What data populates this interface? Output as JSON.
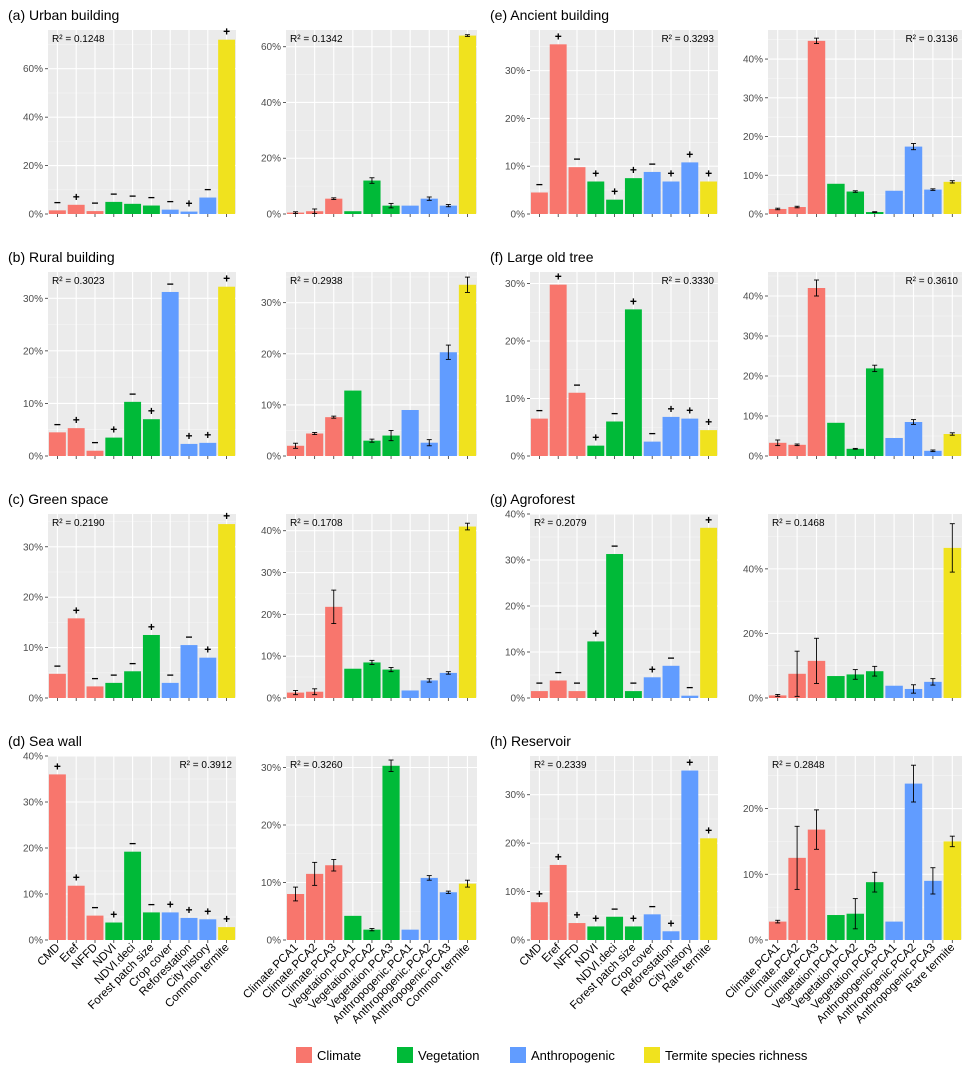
{
  "colors": {
    "Climate": "#F8766D",
    "Vegetation": "#00BA38",
    "Anthropogenic": "#619CFF",
    "Termite": "#F0E21E",
    "panel_bg": "#EBEBEB",
    "grid": "#FFFFFF",
    "text": "#333333"
  },
  "legend": {
    "entries": [
      {
        "label": "Climate",
        "color_key": "Climate"
      },
      {
        "label": "Vegetation",
        "color_key": "Vegetation"
      },
      {
        "label": "Anthropogenic",
        "color_key": "Anthropogenic"
      },
      {
        "label": "Termite species richness",
        "color_key": "Termite"
      }
    ]
  },
  "chart_data": [
    {
      "type": "bar",
      "panel": "a-left",
      "title": "(a) Urban building",
      "r2": "R² = 0.1248",
      "r2_position": "top-left",
      "ylim": [
        0,
        76
      ],
      "yticks": [
        0,
        20,
        40,
        60
      ],
      "ytick_labels": [
        "0%",
        "20%",
        "40%",
        "60%"
      ],
      "categories": [
        "CMD",
        "Eref",
        "NFFD",
        "NDVI",
        "NDVI.deci",
        "Forest patch size",
        "Crop cover",
        "Reforestation",
        "City history",
        "Common termite"
      ],
      "groups": [
        "Climate",
        "Climate",
        "Climate",
        "Vegetation",
        "Vegetation",
        "Vegetation",
        "Anthropogenic",
        "Anthropogenic",
        "Anthropogenic",
        "Termite"
      ],
      "values": [
        1.5,
        3.8,
        1.2,
        5.0,
        4.2,
        3.5,
        1.8,
        1.0,
        6.8,
        72.0
      ],
      "signs": [
        "−",
        "+",
        "−",
        "−",
        "−",
        "−",
        "−",
        "+",
        "−",
        "+"
      ],
      "errors": null
    },
    {
      "type": "bar",
      "panel": "a-right",
      "title": "",
      "r2": "R² = 0.1342",
      "r2_position": "top-left",
      "ylim": [
        0,
        66
      ],
      "yticks": [
        0,
        20,
        40,
        60
      ],
      "ytick_labels": [
        "0%",
        "20%",
        "40%",
        "60%"
      ],
      "categories": [
        "Climate.PCA1",
        "Climate.PCA2",
        "Climate.PCA3",
        "Vegetation.PCA1",
        "Vegetation.PCA2",
        "Vegetation.PCA3",
        "Anthropogenic.PCA1",
        "Anthropogenic.PCA2",
        "Anthropogenic.PCA3",
        "Common termite"
      ],
      "groups": [
        "Climate",
        "Climate",
        "Climate",
        "Vegetation",
        "Vegetation",
        "Vegetation",
        "Anthropogenic",
        "Anthropogenic",
        "Anthropogenic",
        "Termite"
      ],
      "values": [
        0.5,
        1.0,
        5.5,
        1.0,
        12.0,
        3.0,
        3.0,
        5.5,
        3.0,
        64.0
      ],
      "signs": null,
      "errors": [
        0.3,
        0.8,
        0.3,
        0.0,
        1.0,
        0.8,
        0.0,
        0.6,
        0.4,
        0.3
      ]
    },
    {
      "type": "bar",
      "panel": "b-left",
      "title": "(b) Rural building",
      "r2": "R² = 0.3023",
      "r2_position": "top-left",
      "ylim": [
        0,
        35
      ],
      "yticks": [
        0,
        10,
        20,
        30
      ],
      "ytick_labels": [
        "0%",
        "10%",
        "20%",
        "30%"
      ],
      "categories": [
        "CMD",
        "Eref",
        "NFFD",
        "NDVI",
        "NDVI.deci",
        "Forest patch size",
        "Crop cover",
        "Reforestation",
        "City history",
        "Common termite"
      ],
      "groups": [
        "Climate",
        "Climate",
        "Climate",
        "Vegetation",
        "Vegetation",
        "Vegetation",
        "Anthropogenic",
        "Anthropogenic",
        "Anthropogenic",
        "Termite"
      ],
      "values": [
        4.5,
        5.3,
        1.0,
        3.5,
        10.3,
        7.0,
        31.2,
        2.3,
        2.5,
        32.2
      ],
      "signs": [
        "−",
        "+",
        "−",
        "+",
        "−",
        "+",
        "−",
        "+",
        "+",
        "+"
      ],
      "errors": null
    },
    {
      "type": "bar",
      "panel": "b-right",
      "title": "",
      "r2": "R² = 0.2938",
      "r2_position": "top-left",
      "ylim": [
        0,
        36
      ],
      "yticks": [
        0,
        10,
        20,
        30
      ],
      "ytick_labels": [
        "0%",
        "10%",
        "20%",
        "30%"
      ],
      "categories": [
        "Climate.PCA1",
        "Climate.PCA2",
        "Climate.PCA3",
        "Vegetation.PCA1",
        "Vegetation.PCA2",
        "Vegetation.PCA3",
        "Anthropogenic.PCA1",
        "Anthropogenic.PCA2",
        "Anthropogenic.PCA3",
        "Common termite"
      ],
      "groups": [
        "Climate",
        "Climate",
        "Climate",
        "Vegetation",
        "Vegetation",
        "Vegetation",
        "Anthropogenic",
        "Anthropogenic",
        "Anthropogenic",
        "Termite"
      ],
      "values": [
        2.0,
        4.4,
        7.6,
        12.8,
        3.0,
        4.0,
        9.0,
        2.6,
        20.3,
        33.5
      ],
      "signs": null,
      "errors": [
        0.5,
        0.2,
        0.2,
        0.0,
        0.3,
        1.0,
        0.0,
        0.6,
        1.4,
        1.5
      ]
    },
    {
      "type": "bar",
      "panel": "c-left",
      "title": "(c) Green space",
      "r2": "R² = 0.2190",
      "r2_position": "top-left",
      "ylim": [
        0,
        36.5
      ],
      "yticks": [
        0,
        10,
        20,
        30
      ],
      "ytick_labels": [
        "0%",
        "10%",
        "20%",
        "30%"
      ],
      "categories": [
        "CMD",
        "Eref",
        "NFFD",
        "NDVI",
        "NDVI.deci",
        "Forest patch size",
        "Crop cover",
        "Reforestation",
        "City history",
        "Common termite"
      ],
      "groups": [
        "Climate",
        "Climate",
        "Climate",
        "Vegetation",
        "Vegetation",
        "Vegetation",
        "Anthropogenic",
        "Anthropogenic",
        "Anthropogenic",
        "Termite"
      ],
      "values": [
        4.8,
        15.8,
        2.3,
        3.0,
        5.3,
        12.5,
        3.0,
        10.5,
        8.0,
        34.5
      ],
      "signs": [
        "−",
        "+",
        "−",
        "−",
        "−",
        "+",
        "−",
        "−",
        "+",
        "+"
      ],
      "errors": null
    },
    {
      "type": "bar",
      "panel": "c-right",
      "title": "",
      "r2": "R² = 0.1708",
      "r2_position": "top-left",
      "ylim": [
        0,
        44
      ],
      "yticks": [
        0,
        10,
        20,
        30,
        40
      ],
      "ytick_labels": [
        "0%",
        "10%",
        "20%",
        "30%",
        "40%"
      ],
      "categories": [
        "Climate.PCA1",
        "Climate.PCA2",
        "Climate.PCA3",
        "Vegetation.PCA1",
        "Vegetation.PCA2",
        "Vegetation.PCA3",
        "Anthropogenic.PCA1",
        "Anthropogenic.PCA2",
        "Anthropogenic.PCA3",
        "Common termite"
      ],
      "groups": [
        "Climate",
        "Climate",
        "Climate",
        "Vegetation",
        "Vegetation",
        "Vegetation",
        "Anthropogenic",
        "Anthropogenic",
        "Anthropogenic",
        "Termite"
      ],
      "values": [
        1.3,
        1.5,
        21.8,
        7.0,
        8.5,
        6.8,
        1.8,
        4.2,
        6.0,
        41.0
      ],
      "signs": null,
      "errors": [
        0.5,
        0.7,
        4.0,
        0.0,
        0.5,
        0.5,
        0.0,
        0.4,
        0.3,
        0.8
      ]
    },
    {
      "type": "bar",
      "panel": "d-left",
      "title": "(d) Sea wall",
      "r2": "R² = 0.3912",
      "r2_position": "top-right",
      "ylim": [
        0,
        40
      ],
      "yticks": [
        0,
        10,
        20,
        30,
        40
      ],
      "ytick_labels": [
        "0%",
        "10%",
        "20%",
        "30%",
        "40%"
      ],
      "categories": [
        "CMD",
        "Eref",
        "NFFD",
        "NDVI",
        "NDVI.deci",
        "Forest patch size",
        "Crop cover",
        "Reforestation",
        "City history",
        "Common termite"
      ],
      "groups": [
        "Climate",
        "Climate",
        "Climate",
        "Vegetation",
        "Vegetation",
        "Vegetation",
        "Anthropogenic",
        "Anthropogenic",
        "Anthropogenic",
        "Termite"
      ],
      "values": [
        36.0,
        11.8,
        5.3,
        3.8,
        19.2,
        6.0,
        6.0,
        4.8,
        4.5,
        2.8
      ],
      "signs": [
        "+",
        "+",
        "−",
        "+",
        "−",
        "−",
        "+",
        "+",
        "+",
        "+"
      ],
      "errors": null
    },
    {
      "type": "bar",
      "panel": "d-right",
      "title": "",
      "r2": "R² = 0.3260",
      "r2_position": "top-left",
      "ylim": [
        0,
        32
      ],
      "yticks": [
        0,
        10,
        20,
        30
      ],
      "ytick_labels": [
        "0%",
        "10%",
        "20%",
        "30%"
      ],
      "categories": [
        "Climate.PCA1",
        "Climate.PCA2",
        "Climate.PCA3",
        "Vegetation.PCA1",
        "Vegetation.PCA2",
        "Vegetation.PCA3",
        "Anthropogenic.PCA1",
        "Anthropogenic.PCA2",
        "Anthropogenic.PCA3",
        "Common termite"
      ],
      "groups": [
        "Climate",
        "Climate",
        "Climate",
        "Vegetation",
        "Vegetation",
        "Vegetation",
        "Anthropogenic",
        "Anthropogenic",
        "Anthropogenic",
        "Termite"
      ],
      "values": [
        8.0,
        11.5,
        13.0,
        4.2,
        1.8,
        30.3,
        1.8,
        10.8,
        8.3,
        9.8
      ],
      "signs": null,
      "errors": [
        1.2,
        2.0,
        1.0,
        0.0,
        0.2,
        1.0,
        0.0,
        0.4,
        0.2,
        0.6
      ]
    },
    {
      "type": "bar",
      "panel": "e-left",
      "title": "(e) Ancient building",
      "r2": "R² = 0.3293",
      "r2_position": "top-right",
      "ylim": [
        0,
        38.5
      ],
      "yticks": [
        0,
        10,
        20,
        30
      ],
      "ytick_labels": [
        "0%",
        "10%",
        "20%",
        "30%"
      ],
      "categories": [
        "CMD",
        "Eref",
        "NFFD",
        "NDVI",
        "NDVI.deci",
        "Forest patch size",
        "Crop cover",
        "Reforestation",
        "City history",
        "Rare termite"
      ],
      "groups": [
        "Climate",
        "Climate",
        "Climate",
        "Vegetation",
        "Vegetation",
        "Vegetation",
        "Anthropogenic",
        "Anthropogenic",
        "Anthropogenic",
        "Termite"
      ],
      "values": [
        4.5,
        35.5,
        9.8,
        6.8,
        3.0,
        7.5,
        8.8,
        6.8,
        10.8,
        6.8
      ],
      "signs": [
        "−",
        "+",
        "−",
        "+",
        "+",
        "+",
        "−",
        "+",
        "+",
        "+"
      ],
      "errors": null
    },
    {
      "type": "bar",
      "panel": "e-right",
      "title": "",
      "r2": "R² = 0.3136",
      "r2_position": "top-right",
      "ylim": [
        0,
        47.5
      ],
      "yticks": [
        0,
        10,
        20,
        30,
        40
      ],
      "ytick_labels": [
        "0%",
        "10%",
        "20%",
        "30%",
        "40%"
      ],
      "categories": [
        "Climate.PCA1",
        "Climate.PCA2",
        "Climate.PCA3",
        "Vegetation.PCA1",
        "Vegetation.PCA2",
        "Vegetation.PCA3",
        "Anthropogenic.PCA1",
        "Anthropogenic.PCA2",
        "Anthropogenic.PCA3",
        "Rare termite"
      ],
      "groups": [
        "Climate",
        "Climate",
        "Climate",
        "Vegetation",
        "Vegetation",
        "Vegetation",
        "Anthropogenic",
        "Anthropogenic",
        "Anthropogenic",
        "Termite"
      ],
      "values": [
        1.3,
        1.8,
        44.7,
        7.8,
        5.8,
        0.5,
        6.0,
        17.4,
        6.3,
        8.3
      ],
      "signs": null,
      "errors": [
        0.2,
        0.2,
        0.7,
        0.0,
        0.2,
        0.1,
        0.0,
        0.8,
        0.2,
        0.3
      ]
    },
    {
      "type": "bar",
      "panel": "f-left",
      "title": "(f) Large old tree",
      "r2": "R² = 0.3330",
      "r2_position": "top-right",
      "ylim": [
        0,
        32
      ],
      "yticks": [
        0,
        10,
        20,
        30
      ],
      "ytick_labels": [
        "0%",
        "10%",
        "20%",
        "30%"
      ],
      "categories": [
        "CMD",
        "Eref",
        "NFFD",
        "NDVI",
        "NDVI.deci",
        "Forest patch size",
        "Crop cover",
        "Reforestation",
        "City history",
        "Rare termite"
      ],
      "groups": [
        "Climate",
        "Climate",
        "Climate",
        "Vegetation",
        "Vegetation",
        "Vegetation",
        "Anthropogenic",
        "Anthropogenic",
        "Anthropogenic",
        "Termite"
      ],
      "values": [
        6.5,
        29.8,
        11.0,
        1.8,
        6.0,
        25.5,
        2.5,
        6.8,
        6.5,
        4.5
      ],
      "signs": [
        "−",
        "+",
        "−",
        "+",
        "−",
        "+",
        "−",
        "+",
        "+",
        "+"
      ],
      "errors": null
    },
    {
      "type": "bar",
      "panel": "f-right",
      "title": "",
      "r2": "R² = 0.3610",
      "r2_position": "top-right",
      "ylim": [
        0,
        46
      ],
      "yticks": [
        0,
        10,
        20,
        30,
        40
      ],
      "ytick_labels": [
        "0%",
        "10%",
        "20%",
        "30%",
        "40%"
      ],
      "categories": [
        "Climate.PCA1",
        "Climate.PCA2",
        "Climate.PCA3",
        "Vegetation.PCA1",
        "Vegetation.PCA2",
        "Vegetation.PCA3",
        "Anthropogenic.PCA1",
        "Anthropogenic.PCA2",
        "Anthropogenic.PCA3",
        "Rare termite"
      ],
      "groups": [
        "Climate",
        "Climate",
        "Climate",
        "Vegetation",
        "Vegetation",
        "Vegetation",
        "Anthropogenic",
        "Anthropogenic",
        "Anthropogenic",
        "Termite"
      ],
      "values": [
        3.3,
        2.8,
        42.0,
        8.3,
        1.8,
        21.9,
        4.5,
        8.5,
        1.3,
        5.5
      ],
      "signs": null,
      "errors": [
        0.7,
        0.2,
        2.0,
        0.0,
        0.1,
        0.8,
        0.0,
        0.6,
        0.2,
        0.3
      ]
    },
    {
      "type": "bar",
      "panel": "g-left",
      "title": "(g) Agroforest",
      "r2": "R² = 0.2079",
      "r2_position": "top-left",
      "ylim": [
        0,
        40
      ],
      "yticks": [
        0,
        10,
        20,
        30,
        40
      ],
      "ytick_labels": [
        "0%",
        "10%",
        "20%",
        "30%",
        "40%"
      ],
      "categories": [
        "CMD",
        "Eref",
        "NFFD",
        "NDVI",
        "NDVI.deci",
        "Forest patch size",
        "Crop cover",
        "Reforestation",
        "City history",
        "Rare termite"
      ],
      "groups": [
        "Climate",
        "Climate",
        "Climate",
        "Vegetation",
        "Vegetation",
        "Vegetation",
        "Anthropogenic",
        "Anthropogenic",
        "Anthropogenic",
        "Termite"
      ],
      "values": [
        1.5,
        3.8,
        1.5,
        12.3,
        31.3,
        1.5,
        4.5,
        7.0,
        0.5,
        37.0
      ],
      "signs": [
        "−",
        "−",
        "−",
        "+",
        "−",
        "−",
        "+",
        "−",
        "−",
        "+"
      ],
      "errors": null
    },
    {
      "type": "bar",
      "panel": "g-right",
      "title": "",
      "r2": "R² = 0.1468",
      "r2_position": "top-left",
      "ylim": [
        0,
        57
      ],
      "yticks": [
        0,
        20,
        40
      ],
      "ytick_labels": [
        "0%",
        "20%",
        "40%"
      ],
      "categories": [
        "Climate.PCA1",
        "Climate.PCA2",
        "Climate.PCA3",
        "Vegetation.PCA1",
        "Vegetation.PCA2",
        "Vegetation.PCA3",
        "Anthropogenic.PCA1",
        "Anthropogenic.PCA2",
        "Anthropogenic.PCA3",
        "Rare termite"
      ],
      "groups": [
        "Climate",
        "Climate",
        "Climate",
        "Vegetation",
        "Vegetation",
        "Vegetation",
        "Anthropogenic",
        "Anthropogenic",
        "Anthropogenic",
        "Termite"
      ],
      "values": [
        0.8,
        7.5,
        11.5,
        6.8,
        7.3,
        8.3,
        3.8,
        2.8,
        5.0,
        46.5
      ],
      "signs": null,
      "errors": [
        0.3,
        7.0,
        7.0,
        0.0,
        1.5,
        1.5,
        0.0,
        1.3,
        1.0,
        7.5
      ]
    },
    {
      "type": "bar",
      "panel": "h-left",
      "title": "(h) Reservoir",
      "r2": "R² = 0.2339",
      "r2_position": "top-left",
      "ylim": [
        0,
        38
      ],
      "yticks": [
        0,
        10,
        20,
        30
      ],
      "ytick_labels": [
        "0%",
        "10%",
        "20%",
        "30%"
      ],
      "categories": [
        "CMD",
        "Eref",
        "NFFD",
        "NDVI",
        "NDVI.deci",
        "Forest patch size",
        "Crop cover",
        "Reforestation",
        "City history",
        "Rare termite"
      ],
      "groups": [
        "Climate",
        "Climate",
        "Climate",
        "Vegetation",
        "Vegetation",
        "Vegetation",
        "Anthropogenic",
        "Anthropogenic",
        "Anthropogenic",
        "Termite"
      ],
      "values": [
        7.8,
        15.5,
        3.5,
        2.8,
        4.8,
        2.8,
        5.3,
        1.8,
        35.0,
        21.0
      ],
      "signs": [
        "+",
        "+",
        "+",
        "+",
        "−",
        "+",
        "−",
        "+",
        "+",
        "+"
      ],
      "errors": null
    },
    {
      "type": "bar",
      "panel": "h-right",
      "title": "",
      "r2": "R² = 0.2848",
      "r2_position": "top-left",
      "ylim": [
        0,
        28
      ],
      "yticks": [
        0,
        10,
        20
      ],
      "ytick_labels": [
        "0%",
        "10%",
        "20%"
      ],
      "categories": [
        "Climate.PCA1",
        "Climate.PCA2",
        "Climate.PCA3",
        "Vegetation.PCA1",
        "Vegetation.PCA2",
        "Vegetation.PCA3",
        "Anthropogenic.PCA1",
        "Anthropogenic.PCA2",
        "Anthropogenic.PCA3",
        "Rare termite"
      ],
      "groups": [
        "Climate",
        "Climate",
        "Climate",
        "Vegetation",
        "Vegetation",
        "Vegetation",
        "Anthropogenic",
        "Anthropogenic",
        "Anthropogenic",
        "Termite"
      ],
      "values": [
        2.8,
        12.5,
        16.8,
        3.8,
        4.0,
        8.8,
        2.8,
        23.8,
        9.0,
        15.0
      ],
      "signs": null,
      "errors": [
        0.2,
        4.8,
        3.0,
        0.0,
        2.3,
        1.5,
        0.0,
        2.8,
        2.0,
        0.8
      ]
    }
  ]
}
